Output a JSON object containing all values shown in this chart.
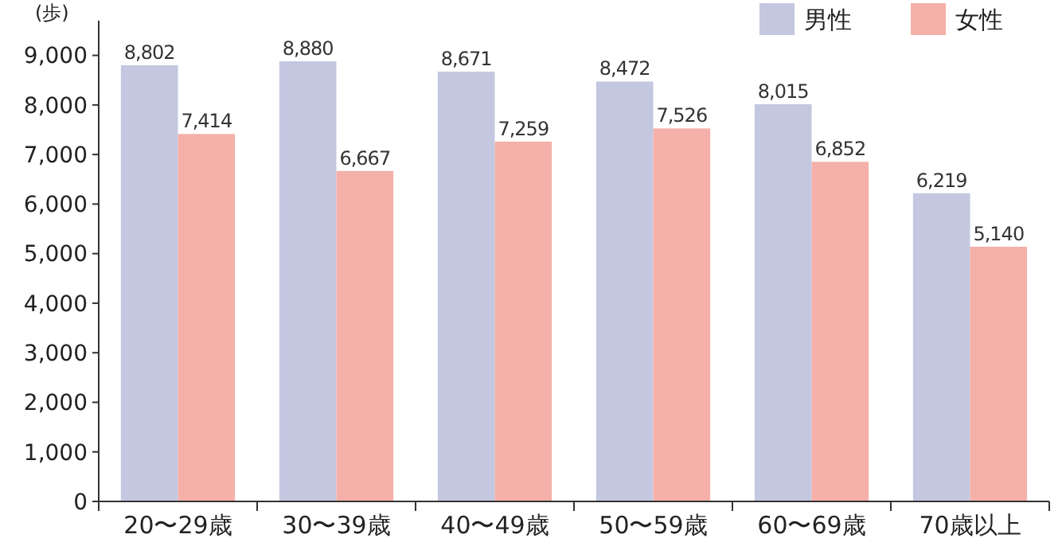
{
  "chart_data": {
    "type": "bar",
    "ylabel": "(歩)",
    "categories": [
      "20〜29歳",
      "30〜39歳",
      "40〜49歳",
      "50〜59歳",
      "60〜69歳",
      "70歳以上"
    ],
    "series": [
      {
        "name": "男性",
        "color": "#c3c8e0",
        "values": [
          8802,
          8880,
          8671,
          8472,
          8015,
          6219
        ],
        "value_labels": [
          "8,802",
          "8,880",
          "8,671",
          "8,472",
          "8,015",
          "6,219"
        ]
      },
      {
        "name": "女性",
        "color": "#f4b0a9",
        "values": [
          7414,
          6667,
          7259,
          7526,
          6852,
          5140
        ],
        "value_labels": [
          "7,414",
          "6,667",
          "7,259",
          "7,526",
          "6,852",
          "5,140"
        ]
      }
    ],
    "ylim": [
      0,
      9700
    ],
    "yticks": [
      {
        "value": 0,
        "label": "0"
      },
      {
        "value": 1000,
        "label": "1,000"
      },
      {
        "value": 2000,
        "label": "2,000"
      },
      {
        "value": 3000,
        "label": "3,000"
      },
      {
        "value": 4000,
        "label": "4,000"
      },
      {
        "value": 5000,
        "label": "5,000"
      },
      {
        "value": 6000,
        "label": "6,000"
      },
      {
        "value": 7000,
        "label": "7,000"
      },
      {
        "value": 8000,
        "label": "8,000"
      },
      {
        "value": 9000,
        "label": "9,000"
      }
    ],
    "legend": "top right",
    "grid": false
  }
}
